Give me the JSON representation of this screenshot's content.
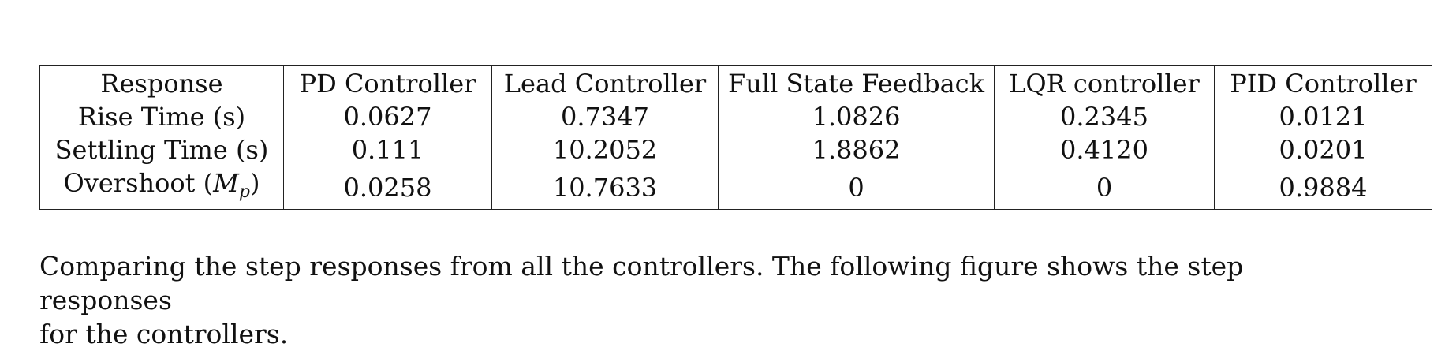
{
  "table": {
    "headers": [
      "Response",
      "PD Controller",
      "Lead Controller",
      "Full State Feedback",
      "LQR controller",
      "PID Controller"
    ],
    "rows": [
      {
        "label": "Rise Time (s)",
        "values": [
          "0.0627",
          "0.7347",
          "1.0826",
          "0.2345",
          "0.0121"
        ]
      },
      {
        "label": "Settling Time (s)",
        "values": [
          "0.111",
          "10.2052",
          "1.8862",
          "0.4120",
          "0.0201"
        ]
      },
      {
        "label_prefix": "Overshoot (",
        "label_symbol": "M",
        "label_subscript": "p",
        "label_suffix": ")",
        "values": [
          "0.0258",
          "10.7633",
          "0",
          "0",
          "0.9884"
        ]
      }
    ]
  },
  "paragraph": {
    "line1": "Comparing the step responses from all the controllers.  The following figure shows the step responses",
    "line2": "for the controllers."
  }
}
